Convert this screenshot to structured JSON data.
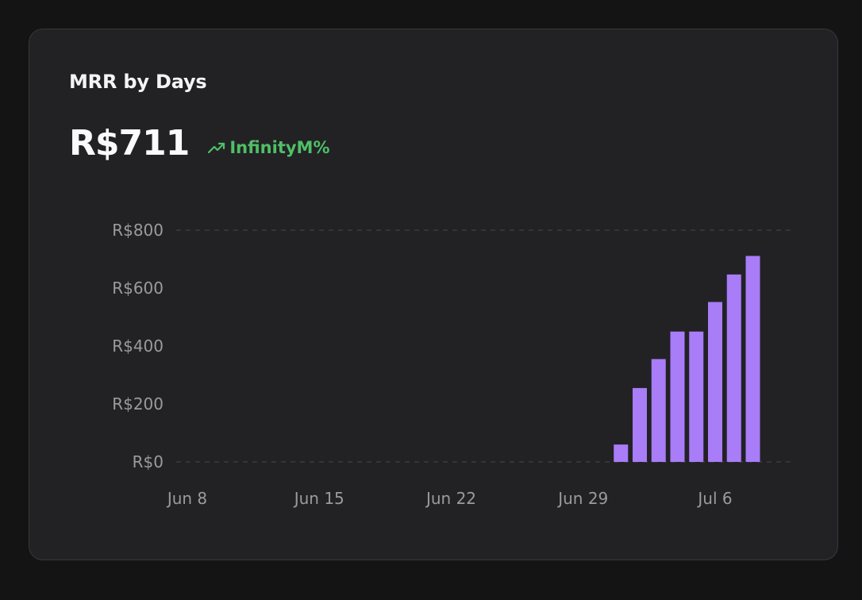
{
  "card": {
    "title": "MRR by Days",
    "value": "R$711",
    "change": "InfinityM%"
  },
  "colors": {
    "background": "#141415",
    "card": "#222225",
    "bar": "#a97cf8",
    "trend": "#4fbf67",
    "grid": "#48484d",
    "tick": "#9a9aa0"
  },
  "icons": {
    "trend": "trending-up-icon"
  },
  "chart_data": {
    "type": "bar",
    "title": "MRR by Days",
    "xlabel": "",
    "ylabel": "",
    "ylim": [
      0,
      800
    ],
    "y_ticks": [
      0,
      200,
      400,
      600,
      800
    ],
    "y_tick_labels": [
      "R$0",
      "R$200",
      "R$400",
      "R$600",
      "R$800"
    ],
    "x_range": [
      "2024-06-08",
      "2024-07-08"
    ],
    "x_tick_dates": [
      "2024-06-08",
      "2024-06-15",
      "2024-06-22",
      "2024-06-29",
      "2024-07-06"
    ],
    "x_tick_labels": [
      "Jun 8",
      "Jun 15",
      "Jun 22",
      "Jun 29",
      "Jul 6"
    ],
    "grid": "dashed horizontal lines at 0 and 800",
    "legend": "none",
    "series": [
      {
        "x": [
          "2024-07-01",
          "2024-07-02",
          "2024-07-03",
          "2024-07-04",
          "2024-07-05",
          "2024-07-06",
          "2024-07-07",
          "2024-07-08"
        ],
        "values": [
          60,
          255,
          355,
          450,
          450,
          552,
          647,
          711
        ]
      }
    ]
  }
}
